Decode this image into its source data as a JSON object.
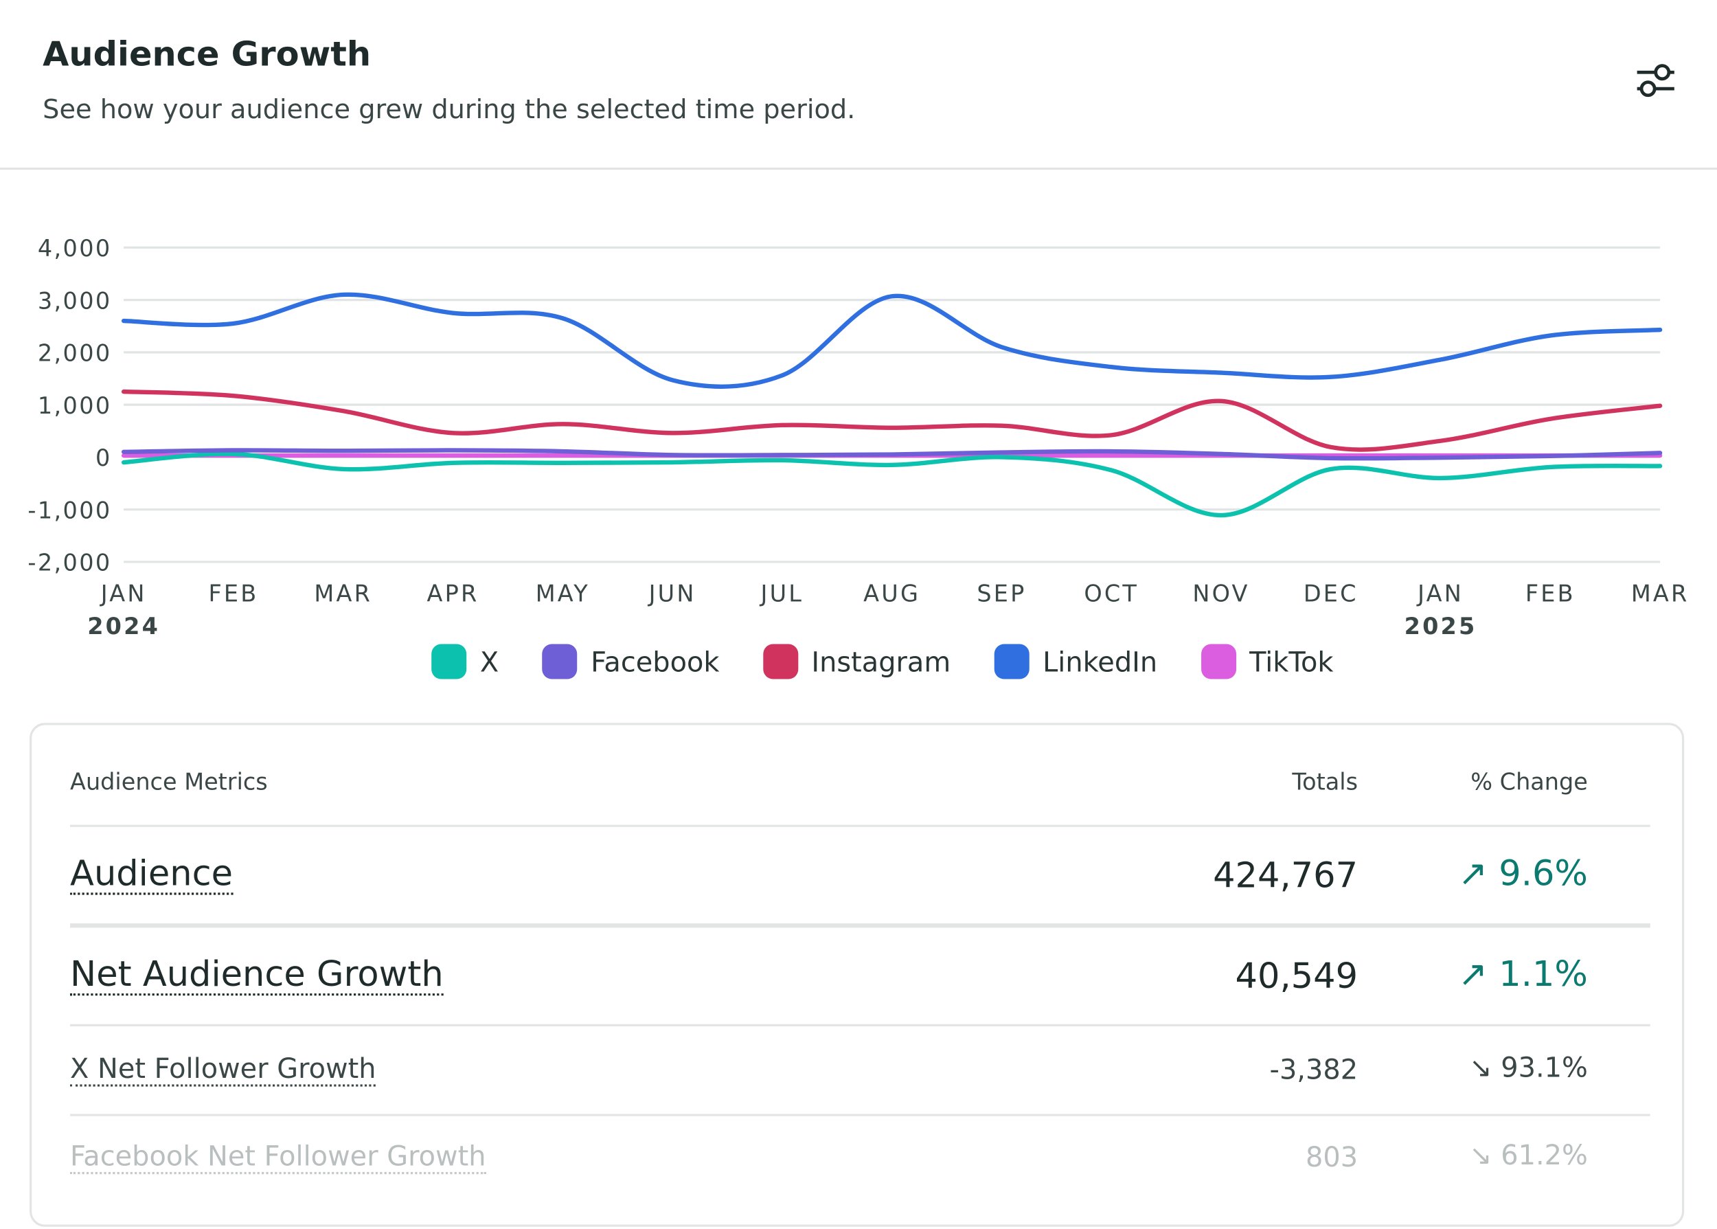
{
  "header": {
    "title": "Audience Growth",
    "subtitle": "See how your audience grew during the selected time period.",
    "filter_icon": "sliders-icon"
  },
  "chart_data": {
    "type": "line",
    "categories": [
      "JAN",
      "FEB",
      "MAR",
      "APR",
      "MAY",
      "JUN",
      "JUL",
      "AUG",
      "SEP",
      "OCT",
      "NOV",
      "DEC",
      "JAN",
      "FEB",
      "MAR"
    ],
    "year_labels": [
      {
        "index": 0,
        "label": "2024"
      },
      {
        "index": 12,
        "label": "2025"
      }
    ],
    "ylim": [
      -2000,
      4000
    ],
    "yticks": [
      "4,000",
      "3,000",
      "2,000",
      "1,000",
      "0",
      "-1,000",
      "-2,000"
    ],
    "ytick_values": [
      4000,
      3000,
      2000,
      1000,
      0,
      -1000,
      -2000
    ],
    "grid": true,
    "legend_position": "bottom",
    "series": [
      {
        "name": "X",
        "color": "#0cc2ae",
        "values": [
          -100,
          60,
          -230,
          -110,
          -110,
          -100,
          -60,
          -150,
          0,
          -250,
          -1110,
          -230,
          -400,
          -190,
          -170
        ]
      },
      {
        "name": "Facebook",
        "color": "#6f5fd6",
        "values": [
          100,
          130,
          120,
          130,
          110,
          40,
          40,
          50,
          90,
          110,
          60,
          -20,
          -10,
          20,
          80
        ]
      },
      {
        "name": "Instagram",
        "color": "#d0345e",
        "values": [
          1250,
          1170,
          880,
          460,
          630,
          460,
          610,
          560,
          600,
          420,
          1070,
          190,
          310,
          730,
          980
        ]
      },
      {
        "name": "LinkedIn",
        "color": "#2f6fe0",
        "values": [
          2600,
          2550,
          3100,
          2750,
          2650,
          1470,
          1560,
          3070,
          2100,
          1720,
          1610,
          1530,
          1860,
          2320,
          2430
        ]
      },
      {
        "name": "TikTok",
        "color": "#dc5ee0",
        "values": [
          30,
          30,
          30,
          30,
          30,
          30,
          30,
          30,
          30,
          30,
          30,
          30,
          30,
          30,
          30
        ]
      }
    ]
  },
  "table": {
    "headers": {
      "metric": "Audience Metrics",
      "totals": "Totals",
      "change": "% Change"
    },
    "rows": [
      {
        "label": "Audience",
        "total": "424,767",
        "change": "9.6%",
        "direction": "up",
        "arrow": "↗"
      },
      {
        "label": "Net Audience Growth",
        "total": "40,549",
        "change": "1.1%",
        "direction": "up",
        "arrow": "↗"
      },
      {
        "label": "X Net Follower Growth",
        "total": "-3,382",
        "change": "93.1%",
        "direction": "down",
        "arrow": "↘"
      },
      {
        "label": "Facebook Net Follower Growth",
        "total": "803",
        "change": "61.2%",
        "direction": "down",
        "arrow": "↘"
      }
    ]
  }
}
